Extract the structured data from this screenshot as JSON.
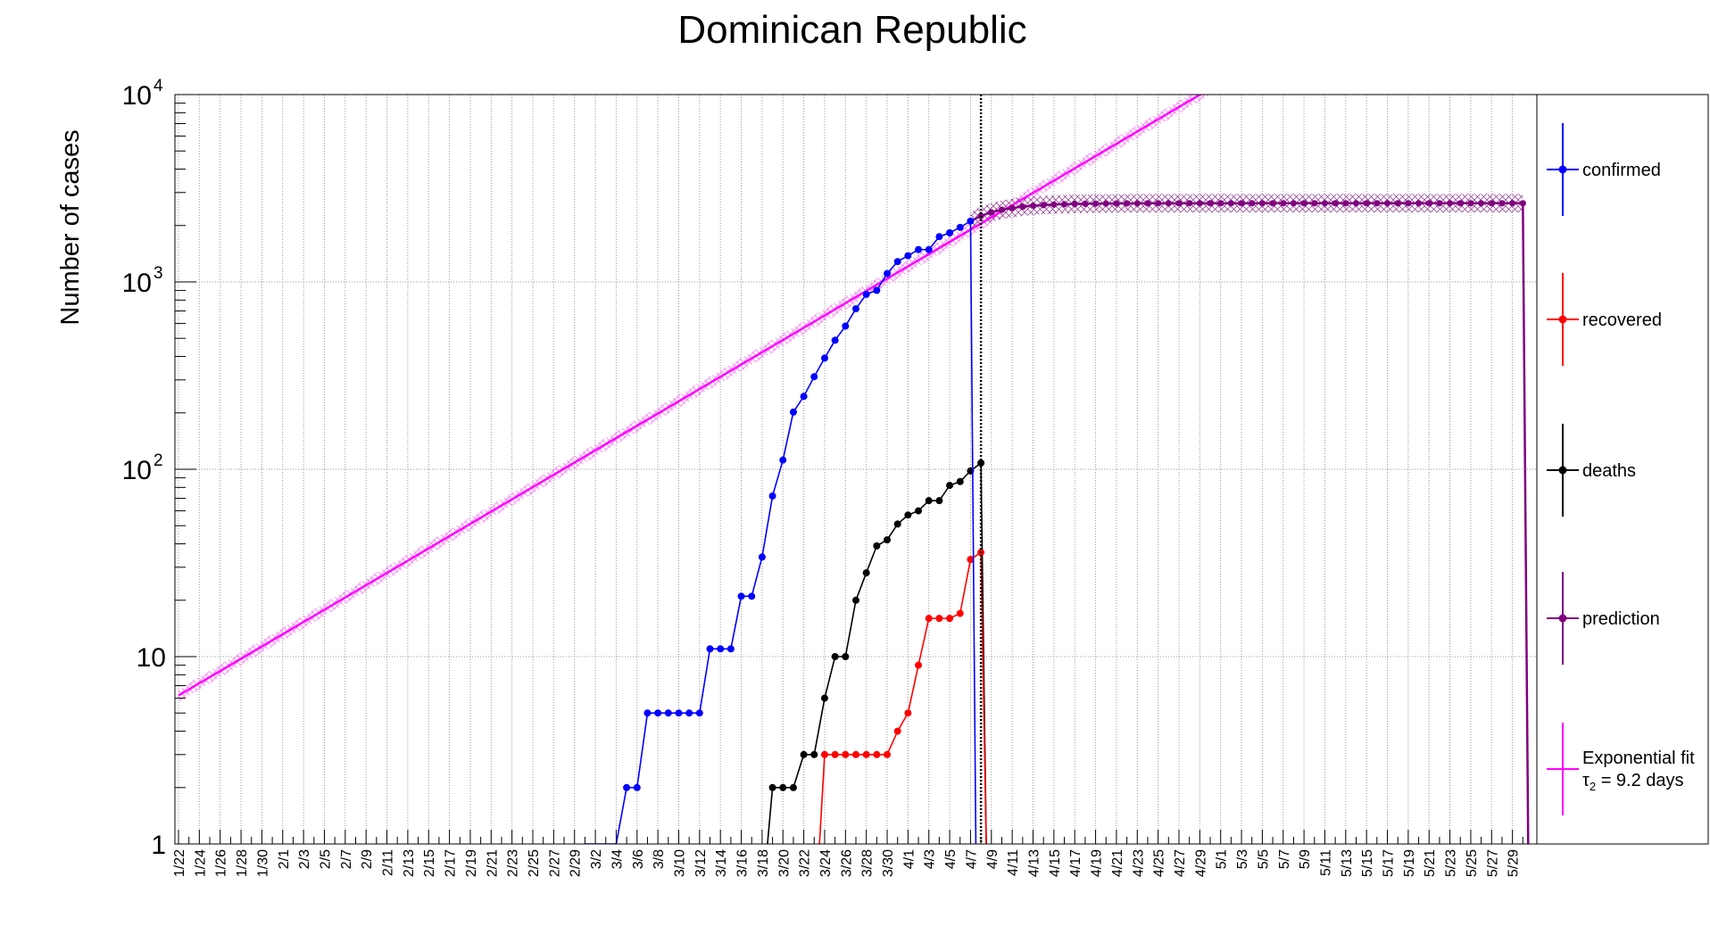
{
  "chart_data": {
    "type": "line",
    "title": "Dominican Republic",
    "ylabel": "Number of cases",
    "xlabel": "",
    "y_scale": "log",
    "ylim": [
      1,
      10000
    ],
    "grid": true,
    "legend_position": "right",
    "x_start": "1/22",
    "x_end": "5/31",
    "x_tick_labels": [
      "1/22",
      "1/24",
      "1/26",
      "1/28",
      "1/30",
      "2/1",
      "2/3",
      "2/5",
      "2/7",
      "2/9",
      "2/11",
      "2/13",
      "2/15",
      "2/17",
      "2/19",
      "2/21",
      "2/23",
      "2/25",
      "2/27",
      "2/29",
      "3/2",
      "3/4",
      "3/6",
      "3/8",
      "3/10",
      "3/12",
      "3/14",
      "3/16",
      "3/18",
      "3/20",
      "3/22",
      "3/24",
      "3/26",
      "3/28",
      "3/30",
      "4/1",
      "4/3",
      "4/5",
      "4/7",
      "4/9",
      "4/11",
      "4/13",
      "4/15",
      "4/17",
      "4/19",
      "4/21",
      "4/23",
      "4/25",
      "4/27",
      "4/29",
      "5/1",
      "5/3",
      "5/5",
      "5/7",
      "5/9",
      "5/11",
      "5/13",
      "5/15",
      "5/17",
      "5/19",
      "5/21",
      "5/23",
      "5/25",
      "5/27",
      "5/29"
    ],
    "y_tick_labels": [
      {
        "value": 1,
        "text": "1"
      },
      {
        "value": 10,
        "text": "10"
      },
      {
        "value": 100,
        "base": "10",
        "exp": "2"
      },
      {
        "value": 1000,
        "base": "10",
        "exp": "3"
      },
      {
        "value": 10000,
        "base": "10",
        "exp": "4"
      }
    ],
    "marker_line": "4/8",
    "series": [
      {
        "name": "confirmed",
        "color": "#0000ff",
        "x": [
          "3/1",
          "3/2",
          "3/3",
          "3/4",
          "3/5",
          "3/6",
          "3/7",
          "3/8",
          "3/9",
          "3/10",
          "3/11",
          "3/12",
          "3/13",
          "3/14",
          "3/15",
          "3/16",
          "3/17",
          "3/18",
          "3/19",
          "3/20",
          "3/21",
          "3/22",
          "3/23",
          "3/24",
          "3/25",
          "3/26",
          "3/27",
          "3/28",
          "3/29",
          "3/30",
          "3/31",
          "4/1",
          "4/2",
          "4/3",
          "4/4",
          "4/5",
          "4/6",
          "4/7"
        ],
        "values": [
          1,
          1,
          1,
          1,
          2,
          2,
          5,
          5,
          5,
          5,
          5,
          5,
          11,
          11,
          11,
          21,
          21,
          34,
          72,
          112,
          202,
          245,
          312,
          392,
          488,
          581,
          719,
          859,
          901,
          1109,
          1284,
          1380,
          1488,
          1488,
          1745,
          1828,
          1956,
          2111
        ],
        "markers_from": "3/5"
      },
      {
        "name": "recovered",
        "color": "#ff0000",
        "x": [
          "3/24",
          "3/25",
          "3/26",
          "3/27",
          "3/28",
          "3/29",
          "3/30",
          "3/31",
          "4/1",
          "4/2",
          "4/3",
          "4/4",
          "4/5",
          "4/6",
          "4/7",
          "4/8"
        ],
        "values": [
          3,
          3,
          3,
          3,
          3,
          3,
          3,
          4,
          5,
          9,
          16,
          16,
          16,
          17,
          33,
          36
        ]
      },
      {
        "name": "deaths",
        "color": "#000000",
        "x": [
          "3/19",
          "3/20",
          "3/21",
          "3/22",
          "3/23",
          "3/24",
          "3/25",
          "3/26",
          "3/27",
          "3/28",
          "3/29",
          "3/30",
          "3/31",
          "4/1",
          "4/2",
          "4/3",
          "4/4",
          "4/5",
          "4/6",
          "4/7",
          "4/8"
        ],
        "values": [
          2,
          2,
          2,
          3,
          3,
          6,
          10,
          10,
          20,
          28,
          39,
          42,
          51,
          57,
          60,
          68,
          68,
          82,
          86,
          98,
          108
        ]
      },
      {
        "name": "prediction",
        "color": "#800080",
        "x_start": "4/7",
        "x_end": "5/30",
        "start_value": 2111,
        "plateau": 2630,
        "band_ratio": 1.12
      },
      {
        "name": "Exponential fit",
        "label_line2_symbol": "τ",
        "label_line2_sub": "2",
        "label_line2_rest": " = 9.2 days",
        "color": "#ff00ff",
        "x_start": "1/22",
        "x_end": "4/30",
        "start_value": 6.2,
        "doubling_days": 9.2
      }
    ]
  }
}
